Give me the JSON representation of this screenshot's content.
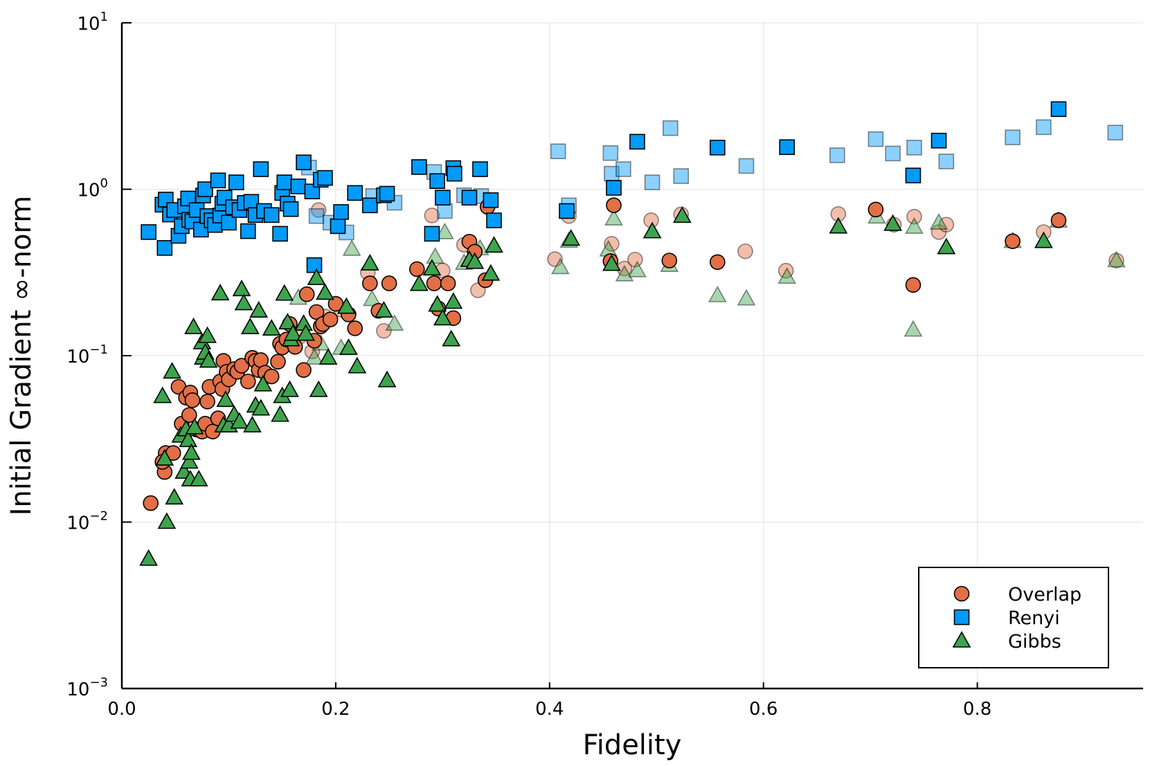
{
  "chart_data": {
    "type": "scatter",
    "title": "",
    "xlabel": "Fidelity",
    "ylabel": "Initial Gradient ∞-norm",
    "xlim": [
      0,
      0.955
    ],
    "ylim": [
      0.001,
      10
    ],
    "yscale": "log",
    "grid": true,
    "legend_position": "bottom-right",
    "x_ticks": [
      {
        "value": 0.0,
        "label": "0.0"
      },
      {
        "value": 0.2,
        "label": "0.2"
      },
      {
        "value": 0.4,
        "label": "0.4"
      },
      {
        "value": 0.6,
        "label": "0.6"
      },
      {
        "value": 0.8,
        "label": "0.8"
      }
    ],
    "y_ticks": [
      {
        "value": 0.001,
        "base": "10",
        "exp": "−3"
      },
      {
        "value": 0.01,
        "base": "10",
        "exp": "−2"
      },
      {
        "value": 0.1,
        "base": "10",
        "exp": "−1"
      },
      {
        "value": 1,
        "base": "10",
        "exp": "0"
      },
      {
        "value": 10,
        "base": "10",
        "exp": "1"
      }
    ],
    "series": [
      {
        "name": "Overlap",
        "marker": "circle",
        "color": "#E26F46",
        "points": [
          [
            0.027,
            0.013
          ],
          [
            0.04,
            0.02
          ],
          [
            0.041,
            0.026
          ],
          [
            0.038,
            0.023
          ],
          [
            0.048,
            0.026
          ],
          [
            0.053,
            0.065
          ],
          [
            0.056,
            0.039
          ],
          [
            0.06,
            0.056
          ],
          [
            0.063,
            0.044
          ],
          [
            0.064,
            0.06
          ],
          [
            0.066,
            0.054
          ],
          [
            0.07,
            0.036
          ],
          [
            0.075,
            0.035
          ],
          [
            0.078,
            0.039
          ],
          [
            0.08,
            0.053
          ],
          [
            0.082,
            0.065
          ],
          [
            0.085,
            0.035
          ],
          [
            0.09,
            0.042
          ],
          [
            0.092,
            0.07
          ],
          [
            0.094,
            0.063
          ],
          [
            0.095,
            0.093
          ],
          [
            0.098,
            0.08
          ],
          [
            0.1,
            0.072
          ],
          [
            0.105,
            0.083
          ],
          [
            0.108,
            0.08
          ],
          [
            0.112,
            0.087
          ],
          [
            0.118,
            0.07
          ],
          [
            0.122,
            0.097
          ],
          [
            0.125,
            0.093
          ],
          [
            0.128,
            0.082
          ],
          [
            0.13,
            0.094
          ],
          [
            0.134,
            0.079
          ],
          [
            0.14,
            0.075
          ],
          [
            0.146,
            0.092
          ],
          [
            0.148,
            0.118
          ],
          [
            0.15,
            0.112
          ],
          [
            0.154,
            0.125
          ],
          [
            0.157,
            0.155
          ],
          [
            0.162,
            0.113
          ],
          [
            0.166,
            0.13
          ],
          [
            0.17,
            0.082
          ],
          [
            0.173,
            0.234
          ],
          [
            0.178,
            0.106
          ],
          [
            0.18,
            0.123
          ],
          [
            0.182,
            0.183
          ],
          [
            0.184,
            0.75
          ],
          [
            0.186,
            0.15
          ],
          [
            0.188,
            0.155
          ],
          [
            0.19,
            0.172
          ],
          [
            0.195,
            0.165
          ],
          [
            0.2,
            0.205
          ],
          [
            0.205,
            0.189
          ],
          [
            0.212,
            0.177
          ],
          [
            0.218,
            0.146
          ],
          [
            0.23,
            0.316
          ],
          [
            0.232,
            0.272
          ],
          [
            0.24,
            0.186
          ],
          [
            0.245,
            0.141
          ],
          [
            0.25,
            0.272
          ],
          [
            0.276,
            0.331
          ],
          [
            0.29,
            0.696
          ],
          [
            0.292,
            0.272
          ],
          [
            0.296,
            0.192
          ],
          [
            0.3,
            0.325
          ],
          [
            0.305,
            0.272
          ],
          [
            0.31,
            0.168
          ],
          [
            0.32,
            0.464
          ],
          [
            0.325,
            0.484
          ],
          [
            0.33,
            0.421
          ],
          [
            0.333,
            0.247
          ],
          [
            0.34,
            0.284
          ],
          [
            0.342,
            0.784
          ],
          [
            0.405,
            0.38
          ],
          [
            0.418,
            0.69
          ],
          [
            0.457,
            0.37
          ],
          [
            0.458,
            0.47
          ],
          [
            0.46,
            0.801
          ],
          [
            0.47,
            0.334
          ],
          [
            0.48,
            0.378
          ],
          [
            0.495,
            0.651
          ],
          [
            0.512,
            0.373
          ],
          [
            0.523,
            0.706
          ],
          [
            0.557,
            0.365
          ],
          [
            0.583,
            0.424
          ],
          [
            0.621,
            0.324
          ],
          [
            0.67,
            0.71
          ],
          [
            0.705,
            0.755
          ],
          [
            0.722,
            0.612
          ],
          [
            0.74,
            0.266
          ],
          [
            0.741,
            0.684
          ],
          [
            0.764,
            0.553
          ],
          [
            0.771,
            0.613
          ],
          [
            0.833,
            0.487
          ],
          [
            0.862,
            0.553
          ],
          [
            0.876,
            0.651
          ],
          [
            0.93,
            0.373
          ]
        ]
      },
      {
        "name": "Renyi",
        "marker": "square",
        "color": "#009AFA",
        "points": [
          [
            0.025,
            0.553
          ],
          [
            0.038,
            0.808
          ],
          [
            0.04,
            0.444
          ],
          [
            0.041,
            0.867
          ],
          [
            0.045,
            0.705
          ],
          [
            0.049,
            0.75
          ],
          [
            0.053,
            0.525
          ],
          [
            0.056,
            0.6
          ],
          [
            0.059,
            0.79
          ],
          [
            0.062,
            0.88
          ],
          [
            0.063,
            0.655
          ],
          [
            0.066,
            0.64
          ],
          [
            0.07,
            0.75
          ],
          [
            0.074,
            0.572
          ],
          [
            0.076,
            0.917
          ],
          [
            0.078,
            1.0
          ],
          [
            0.08,
            0.69
          ],
          [
            0.084,
            0.65
          ],
          [
            0.087,
            0.61
          ],
          [
            0.09,
            1.13
          ],
          [
            0.092,
            0.695
          ],
          [
            0.094,
            0.82
          ],
          [
            0.096,
            0.89
          ],
          [
            0.1,
            0.63
          ],
          [
            0.104,
            0.78
          ],
          [
            0.107,
            1.1
          ],
          [
            0.11,
            0.75
          ],
          [
            0.115,
            0.828
          ],
          [
            0.118,
            0.56
          ],
          [
            0.121,
            0.84
          ],
          [
            0.125,
            0.7
          ],
          [
            0.13,
            1.32
          ],
          [
            0.133,
            0.74
          ],
          [
            0.14,
            0.7
          ],
          [
            0.148,
            0.54
          ],
          [
            0.15,
            0.95
          ],
          [
            0.152,
            1.1
          ],
          [
            0.155,
            0.82
          ],
          [
            0.158,
            0.76
          ],
          [
            0.165,
            1.04
          ],
          [
            0.17,
            1.45
          ],
          [
            0.175,
            1.35
          ],
          [
            0.178,
            0.97
          ],
          [
            0.18,
            0.35
          ],
          [
            0.182,
            0.69
          ],
          [
            0.186,
            1.14
          ],
          [
            0.19,
            1.17
          ],
          [
            0.195,
            0.63
          ],
          [
            0.202,
            0.6
          ],
          [
            0.205,
            0.73
          ],
          [
            0.21,
            0.55
          ],
          [
            0.218,
            0.95
          ],
          [
            0.232,
            0.8
          ],
          [
            0.235,
            0.91
          ],
          [
            0.245,
            0.92
          ],
          [
            0.248,
            0.94
          ],
          [
            0.255,
            0.83
          ],
          [
            0.278,
            1.36
          ],
          [
            0.29,
            0.54
          ],
          [
            0.292,
            1.27
          ],
          [
            0.295,
            1.12
          ],
          [
            0.3,
            0.89
          ],
          [
            0.302,
            0.74
          ],
          [
            0.31,
            1.34
          ],
          [
            0.311,
            1.24
          ],
          [
            0.32,
            0.92
          ],
          [
            0.325,
            0.89
          ],
          [
            0.335,
            1.32
          ],
          [
            0.336,
            0.91
          ],
          [
            0.345,
            0.86
          ],
          [
            0.348,
            0.65
          ],
          [
            0.408,
            1.69
          ],
          [
            0.416,
            0.74
          ],
          [
            0.418,
            0.8
          ],
          [
            0.457,
            1.65
          ],
          [
            0.458,
            1.24
          ],
          [
            0.46,
            1.02
          ],
          [
            0.469,
            1.32
          ],
          [
            0.482,
            1.93
          ],
          [
            0.496,
            1.1
          ],
          [
            0.513,
            2.33
          ],
          [
            0.523,
            1.2
          ],
          [
            0.557,
            1.78
          ],
          [
            0.584,
            1.38
          ],
          [
            0.622,
            1.79
          ],
          [
            0.669,
            1.6
          ],
          [
            0.705,
            2.0
          ],
          [
            0.721,
            1.64
          ],
          [
            0.74,
            1.21
          ],
          [
            0.741,
            1.78
          ],
          [
            0.764,
            1.96
          ],
          [
            0.771,
            1.47
          ],
          [
            0.833,
            2.05
          ],
          [
            0.862,
            2.36
          ],
          [
            0.876,
            3.03
          ],
          [
            0.929,
            2.19
          ]
        ]
      },
      {
        "name": "Gibbs",
        "marker": "triangle",
        "color": "#3DA44D",
        "points": [
          [
            0.025,
            0.006
          ],
          [
            0.038,
            0.057
          ],
          [
            0.04,
            0.024
          ],
          [
            0.042,
            0.01
          ],
          [
            0.047,
            0.08
          ],
          [
            0.049,
            0.014
          ],
          [
            0.055,
            0.033
          ],
          [
            0.058,
            0.02
          ],
          [
            0.06,
            0.036
          ],
          [
            0.062,
            0.031
          ],
          [
            0.063,
            0.023
          ],
          [
            0.064,
            0.018
          ],
          [
            0.065,
            0.026
          ],
          [
            0.067,
            0.148
          ],
          [
            0.068,
            0.037
          ],
          [
            0.072,
            0.018
          ],
          [
            0.075,
            0.12
          ],
          [
            0.076,
            0.097
          ],
          [
            0.078,
            0.104
          ],
          [
            0.08,
            0.131
          ],
          [
            0.081,
            0.093
          ],
          [
            0.092,
            0.236
          ],
          [
            0.095,
            0.038
          ],
          [
            0.097,
            0.054
          ],
          [
            0.1,
            0.038
          ],
          [
            0.105,
            0.044
          ],
          [
            0.11,
            0.04
          ],
          [
            0.112,
            0.25
          ],
          [
            0.114,
            0.206
          ],
          [
            0.12,
            0.148
          ],
          [
            0.122,
            0.038
          ],
          [
            0.125,
            0.05
          ],
          [
            0.128,
            0.186
          ],
          [
            0.13,
            0.048
          ],
          [
            0.132,
            0.067
          ],
          [
            0.14,
            0.145
          ],
          [
            0.148,
            0.044
          ],
          [
            0.15,
            0.057
          ],
          [
            0.152,
            0.235
          ],
          [
            0.155,
            0.158
          ],
          [
            0.157,
            0.062
          ],
          [
            0.158,
            0.125
          ],
          [
            0.16,
            0.135
          ],
          [
            0.165,
            0.222
          ],
          [
            0.17,
            0.155
          ],
          [
            0.172,
            0.135
          ],
          [
            0.18,
            0.097
          ],
          [
            0.182,
            0.292
          ],
          [
            0.184,
            0.062
          ],
          [
            0.186,
            0.118
          ],
          [
            0.19,
            0.238
          ],
          [
            0.193,
            0.097
          ],
          [
            0.205,
            0.111
          ],
          [
            0.21,
            0.196
          ],
          [
            0.212,
            0.111
          ],
          [
            0.215,
            0.437
          ],
          [
            0.22,
            0.086
          ],
          [
            0.232,
            0.357
          ],
          [
            0.234,
            0.218
          ],
          [
            0.245,
            0.186
          ],
          [
            0.248,
            0.071
          ],
          [
            0.255,
            0.155
          ],
          [
            0.278,
            0.269
          ],
          [
            0.29,
            0.333
          ],
          [
            0.293,
            0.392
          ],
          [
            0.295,
            0.202
          ],
          [
            0.3,
            0.167
          ],
          [
            0.302,
            0.55
          ],
          [
            0.308,
            0.125
          ],
          [
            0.31,
            0.21
          ],
          [
            0.32,
            0.36
          ],
          [
            0.325,
            0.375
          ],
          [
            0.33,
            0.365
          ],
          [
            0.335,
            0.44
          ],
          [
            0.345,
            0.31
          ],
          [
            0.348,
            0.457
          ],
          [
            0.41,
            0.339
          ],
          [
            0.418,
            0.489
          ],
          [
            0.42,
            0.503
          ],
          [
            0.455,
            0.433
          ],
          [
            0.458,
            0.355
          ],
          [
            0.46,
            0.665
          ],
          [
            0.47,
            0.307
          ],
          [
            0.482,
            0.325
          ],
          [
            0.496,
            0.557
          ],
          [
            0.512,
            0.35
          ],
          [
            0.524,
            0.69
          ],
          [
            0.557,
            0.23
          ],
          [
            0.584,
            0.22
          ],
          [
            0.622,
            0.297
          ],
          [
            0.67,
            0.595
          ],
          [
            0.706,
            0.683
          ],
          [
            0.721,
            0.618
          ],
          [
            0.74,
            0.143
          ],
          [
            0.741,
            0.593
          ],
          [
            0.764,
            0.628
          ],
          [
            0.771,
            0.447
          ],
          [
            0.833,
            0.487
          ],
          [
            0.862,
            0.487
          ],
          [
            0.876,
            0.646
          ],
          [
            0.93,
            0.373
          ]
        ]
      }
    ]
  }
}
